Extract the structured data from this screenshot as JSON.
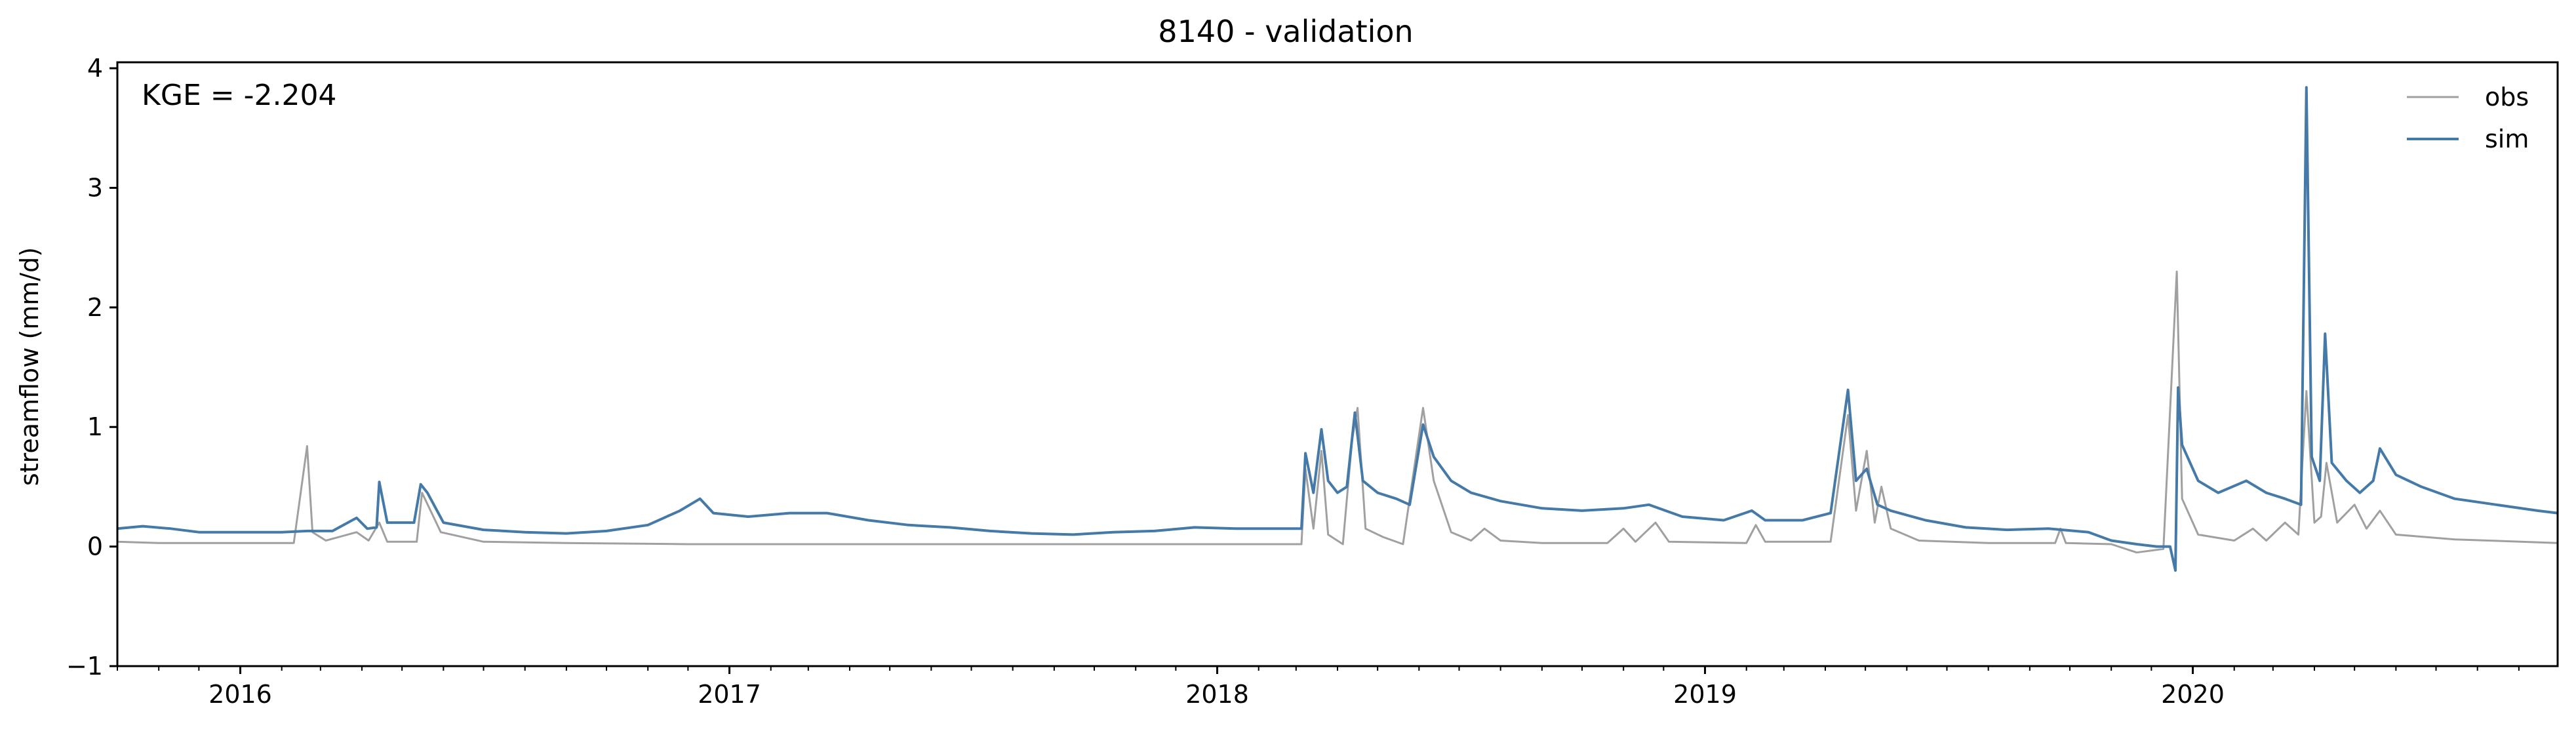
{
  "chart_data": {
    "type": "line",
    "title": "8140 - validation",
    "xlabel": "",
    "ylabel": "streamflow (mm/d)",
    "annotation": "KGE = -2.204",
    "ylim": [
      -1,
      4.05
    ],
    "xlim": [
      "2015-10-01",
      "2020-09-30"
    ],
    "yticks": [
      -1,
      0,
      1,
      2,
      3,
      4
    ],
    "ytick_labels": [
      "−1",
      "0",
      "1",
      "2",
      "3",
      "4"
    ],
    "xticks": [
      "2016-01-01",
      "2017-01-01",
      "2018-01-01",
      "2019-01-01",
      "2020-01-01"
    ],
    "xtick_labels": [
      "2016",
      "2017",
      "2018",
      "2019",
      "2020"
    ],
    "grid": false,
    "legend": "top-right",
    "series": [
      {
        "name": "obs",
        "color": "#a0a0a0",
        "points": [
          [
            "2015-10-01",
            0.04
          ],
          [
            "2015-11-01",
            0.03
          ],
          [
            "2015-12-15",
            0.03
          ],
          [
            "2016-01-20",
            0.03
          ],
          [
            "2016-02-10",
            0.03
          ],
          [
            "2016-02-20",
            0.84
          ],
          [
            "2016-02-24",
            0.12
          ],
          [
            "2016-03-05",
            0.05
          ],
          [
            "2016-03-28",
            0.12
          ],
          [
            "2016-04-06",
            0.05
          ],
          [
            "2016-04-14",
            0.2
          ],
          [
            "2016-04-20",
            0.04
          ],
          [
            "2016-05-12",
            0.04
          ],
          [
            "2016-05-16",
            0.45
          ],
          [
            "2016-05-30",
            0.12
          ],
          [
            "2016-07-01",
            0.04
          ],
          [
            "2016-09-01",
            0.03
          ],
          [
            "2016-12-01",
            0.02
          ],
          [
            "2017-03-01",
            0.02
          ],
          [
            "2017-06-01",
            0.02
          ],
          [
            "2017-09-01",
            0.02
          ],
          [
            "2017-12-01",
            0.02
          ],
          [
            "2018-02-20",
            0.02
          ],
          [
            "2018-03-05",
            0.02
          ],
          [
            "2018-03-08",
            0.65
          ],
          [
            "2018-03-14",
            0.15
          ],
          [
            "2018-03-20",
            0.8
          ],
          [
            "2018-03-25",
            0.1
          ],
          [
            "2018-04-05",
            0.02
          ],
          [
            "2018-04-12",
            0.9
          ],
          [
            "2018-04-16",
            1.16
          ],
          [
            "2018-04-22",
            0.15
          ],
          [
            "2018-05-05",
            0.08
          ],
          [
            "2018-05-20",
            0.02
          ],
          [
            "2018-06-04",
            1.16
          ],
          [
            "2018-06-12",
            0.55
          ],
          [
            "2018-06-25",
            0.12
          ],
          [
            "2018-07-10",
            0.05
          ],
          [
            "2018-07-20",
            0.15
          ],
          [
            "2018-08-01",
            0.05
          ],
          [
            "2018-09-01",
            0.03
          ],
          [
            "2018-10-20",
            0.03
          ],
          [
            "2018-11-01",
            0.15
          ],
          [
            "2018-11-10",
            0.04
          ],
          [
            "2018-11-25",
            0.2
          ],
          [
            "2018-12-05",
            0.04
          ],
          [
            "2019-02-01",
            0.03
          ],
          [
            "2019-02-08",
            0.18
          ],
          [
            "2019-02-15",
            0.04
          ],
          [
            "2019-04-05",
            0.04
          ],
          [
            "2019-04-18",
            1.1
          ],
          [
            "2019-04-24",
            0.3
          ],
          [
            "2019-05-02",
            0.8
          ],
          [
            "2019-05-08",
            0.2
          ],
          [
            "2019-05-13",
            0.5
          ],
          [
            "2019-05-20",
            0.15
          ],
          [
            "2019-06-10",
            0.05
          ],
          [
            "2019-08-01",
            0.03
          ],
          [
            "2019-09-20",
            0.03
          ],
          [
            "2019-09-24",
            0.15
          ],
          [
            "2019-09-28",
            0.03
          ],
          [
            "2019-11-01",
            0.02
          ],
          [
            "2019-11-20",
            -0.05
          ],
          [
            "2019-12-10",
            -0.02
          ],
          [
            "2019-12-20",
            2.3
          ],
          [
            "2019-12-24",
            0.4
          ],
          [
            "2020-01-05",
            0.1
          ],
          [
            "2020-02-01",
            0.05
          ],
          [
            "2020-02-15",
            0.15
          ],
          [
            "2020-02-25",
            0.05
          ],
          [
            "2020-03-10",
            0.2
          ],
          [
            "2020-03-20",
            0.1
          ],
          [
            "2020-03-26",
            1.3
          ],
          [
            "2020-04-01",
            0.2
          ],
          [
            "2020-04-06",
            0.25
          ],
          [
            "2020-04-10",
            0.7
          ],
          [
            "2020-04-18",
            0.2
          ],
          [
            "2020-05-01",
            0.35
          ],
          [
            "2020-05-10",
            0.15
          ],
          [
            "2020-05-20",
            0.3
          ],
          [
            "2020-06-01",
            0.1
          ],
          [
            "2020-07-15",
            0.06
          ],
          [
            "2020-09-30",
            0.03
          ]
        ]
      },
      {
        "name": "sim",
        "color": "#4479a8",
        "points": [
          [
            "2015-10-01",
            0.15
          ],
          [
            "2015-10-20",
            0.17
          ],
          [
            "2015-11-10",
            0.15
          ],
          [
            "2015-12-01",
            0.12
          ],
          [
            "2016-01-01",
            0.12
          ],
          [
            "2016-02-01",
            0.12
          ],
          [
            "2016-02-20",
            0.13
          ],
          [
            "2016-03-10",
            0.13
          ],
          [
            "2016-03-28",
            0.24
          ],
          [
            "2016-04-05",
            0.15
          ],
          [
            "2016-04-12",
            0.16
          ],
          [
            "2016-04-14",
            0.54
          ],
          [
            "2016-04-20",
            0.2
          ],
          [
            "2016-05-10",
            0.2
          ],
          [
            "2016-05-15",
            0.52
          ],
          [
            "2016-05-20",
            0.45
          ],
          [
            "2016-06-01",
            0.2
          ],
          [
            "2016-07-01",
            0.14
          ],
          [
            "2016-08-01",
            0.12
          ],
          [
            "2016-09-01",
            0.11
          ],
          [
            "2016-10-01",
            0.13
          ],
          [
            "2016-11-01",
            0.18
          ],
          [
            "2016-11-25",
            0.3
          ],
          [
            "2016-12-10",
            0.4
          ],
          [
            "2016-12-20",
            0.28
          ],
          [
            "2017-01-15",
            0.25
          ],
          [
            "2017-02-15",
            0.28
          ],
          [
            "2017-03-15",
            0.28
          ],
          [
            "2017-04-15",
            0.22
          ],
          [
            "2017-05-15",
            0.18
          ],
          [
            "2017-06-15",
            0.16
          ],
          [
            "2017-07-15",
            0.13
          ],
          [
            "2017-08-15",
            0.11
          ],
          [
            "2017-09-15",
            0.1
          ],
          [
            "2017-10-15",
            0.12
          ],
          [
            "2017-11-15",
            0.13
          ],
          [
            "2017-12-15",
            0.16
          ],
          [
            "2018-01-15",
            0.15
          ],
          [
            "2018-02-15",
            0.15
          ],
          [
            "2018-03-05",
            0.15
          ],
          [
            "2018-03-08",
            0.78
          ],
          [
            "2018-03-14",
            0.45
          ],
          [
            "2018-03-20",
            0.98
          ],
          [
            "2018-03-25",
            0.55
          ],
          [
            "2018-04-01",
            0.45
          ],
          [
            "2018-04-08",
            0.5
          ],
          [
            "2018-04-14",
            1.12
          ],
          [
            "2018-04-20",
            0.55
          ],
          [
            "2018-05-01",
            0.45
          ],
          [
            "2018-05-15",
            0.4
          ],
          [
            "2018-05-25",
            0.35
          ],
          [
            "2018-06-04",
            1.02
          ],
          [
            "2018-06-12",
            0.75
          ],
          [
            "2018-06-25",
            0.55
          ],
          [
            "2018-07-10",
            0.45
          ],
          [
            "2018-08-01",
            0.38
          ],
          [
            "2018-09-01",
            0.32
          ],
          [
            "2018-10-01",
            0.3
          ],
          [
            "2018-11-01",
            0.32
          ],
          [
            "2018-11-20",
            0.35
          ],
          [
            "2018-12-15",
            0.25
          ],
          [
            "2019-01-15",
            0.22
          ],
          [
            "2019-02-05",
            0.3
          ],
          [
            "2019-02-15",
            0.22
          ],
          [
            "2019-03-15",
            0.22
          ],
          [
            "2019-04-05",
            0.28
          ],
          [
            "2019-04-18",
            1.31
          ],
          [
            "2019-04-24",
            0.55
          ],
          [
            "2019-05-02",
            0.65
          ],
          [
            "2019-05-10",
            0.35
          ],
          [
            "2019-05-20",
            0.3
          ],
          [
            "2019-06-15",
            0.22
          ],
          [
            "2019-07-15",
            0.16
          ],
          [
            "2019-08-15",
            0.14
          ],
          [
            "2019-09-15",
            0.15
          ],
          [
            "2019-10-15",
            0.12
          ],
          [
            "2019-11-01",
            0.05
          ],
          [
            "2019-11-20",
            0.02
          ],
          [
            "2019-12-05",
            0.0
          ],
          [
            "2019-12-15",
            0.0
          ],
          [
            "2019-12-19",
            -0.2
          ],
          [
            "2019-12-21",
            1.33
          ],
          [
            "2019-12-24",
            0.85
          ],
          [
            "2020-01-05",
            0.55
          ],
          [
            "2020-01-20",
            0.45
          ],
          [
            "2020-02-10",
            0.55
          ],
          [
            "2020-02-25",
            0.45
          ],
          [
            "2020-03-10",
            0.4
          ],
          [
            "2020-03-22",
            0.35
          ],
          [
            "2020-03-26",
            3.84
          ],
          [
            "2020-03-30",
            0.75
          ],
          [
            "2020-04-05",
            0.55
          ],
          [
            "2020-04-09",
            1.78
          ],
          [
            "2020-04-14",
            0.7
          ],
          [
            "2020-04-25",
            0.55
          ],
          [
            "2020-05-05",
            0.45
          ],
          [
            "2020-05-15",
            0.55
          ],
          [
            "2020-05-20",
            0.82
          ],
          [
            "2020-06-01",
            0.6
          ],
          [
            "2020-06-20",
            0.5
          ],
          [
            "2020-07-15",
            0.4
          ],
          [
            "2020-08-15",
            0.35
          ],
          [
            "2020-09-15",
            0.3
          ],
          [
            "2020-09-30",
            0.28
          ]
        ]
      }
    ]
  }
}
